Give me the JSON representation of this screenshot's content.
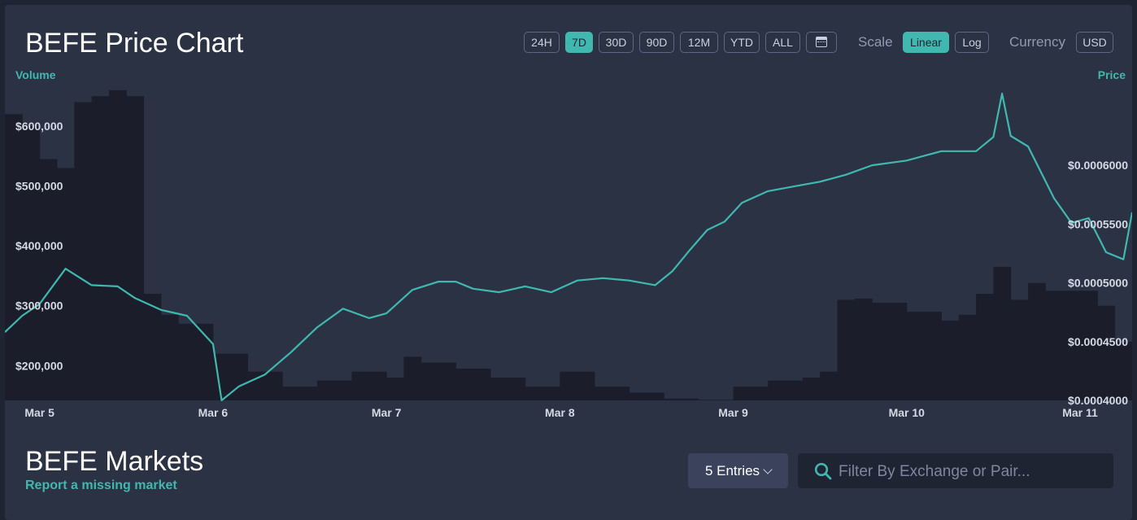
{
  "chart": {
    "title": "BEFE Price Chart",
    "ranges": [
      "24H",
      "7D",
      "30D",
      "90D",
      "12M",
      "YTD",
      "ALL"
    ],
    "active_range": "7D",
    "calendar_icon": "calendar-icon",
    "scale_label": "Scale",
    "scales": [
      "Linear",
      "Log"
    ],
    "active_scale": "Linear",
    "currency_label": "Currency",
    "currency": "USD",
    "colors": {
      "price_line": "#40b8b0",
      "volume_bars": "#1b1e2a",
      "accent": "#40b8b0"
    }
  },
  "chart_data": {
    "type": "line",
    "title": "BEFE Price Chart",
    "left_axis_label": "Volume",
    "right_axis_label": "Price",
    "x_tick_labels": [
      "Mar 5",
      "Mar 6",
      "Mar 7",
      "Mar 8",
      "Mar 9",
      "Mar 10",
      "Mar 11"
    ],
    "x_range_days": [
      -0.2,
      6.3
    ],
    "volume_ticks": [
      {
        "value": 200000,
        "label": "$200,000"
      },
      {
        "value": 300000,
        "label": "$300,000"
      },
      {
        "value": 400000,
        "label": "$400,000"
      },
      {
        "value": 500000,
        "label": "$500,000"
      },
      {
        "value": 600000,
        "label": "$600,000"
      }
    ],
    "volume_range": [
      142000,
      672000
    ],
    "price_ticks": [
      {
        "value": 0.0004,
        "label": "$0.0004000"
      },
      {
        "value": 0.00045,
        "label": "$0.0004500"
      },
      {
        "value": 0.0005,
        "label": "$0.0005000"
      },
      {
        "value": 0.00055,
        "label": "$0.0005500"
      },
      {
        "value": 0.0006,
        "label": "$0.0006000"
      }
    ],
    "price_range": [
      0.0004,
      0.00067
    ],
    "series": [
      {
        "name": "Volume",
        "kind": "bar",
        "x_days": [
          -0.2,
          -0.1,
          0.0,
          0.1,
          0.2,
          0.3,
          0.4,
          0.5,
          0.6,
          0.7,
          0.8,
          1.0,
          1.2,
          1.4,
          1.6,
          1.8,
          2.0,
          2.1,
          2.2,
          2.4,
          2.6,
          2.8,
          3.0,
          3.2,
          3.4,
          3.6,
          3.8,
          4.0,
          4.2,
          4.4,
          4.5,
          4.6,
          4.7,
          4.8,
          5.0,
          5.2,
          5.3,
          5.4,
          5.5,
          5.6,
          5.7,
          5.8,
          6.0,
          6.1,
          6.2,
          6.3
        ],
        "values": [
          620000,
          600000,
          545000,
          530000,
          640000,
          650000,
          660000,
          650000,
          320000,
          285000,
          270000,
          220000,
          190000,
          165000,
          175000,
          190000,
          180000,
          215000,
          205000,
          195000,
          180000,
          165000,
          190000,
          165000,
          155000,
          145000,
          143000,
          165000,
          175000,
          180000,
          190000,
          310000,
          312000,
          305000,
          290000,
          275000,
          285000,
          320000,
          365000,
          310000,
          338000,
          325000,
          325000,
          300000,
          240000,
          300000
        ]
      },
      {
        "name": "Price",
        "kind": "line",
        "x_days": [
          -0.2,
          -0.1,
          0.0,
          0.15,
          0.3,
          0.45,
          0.55,
          0.7,
          0.85,
          1.0,
          1.05,
          1.15,
          1.3,
          1.45,
          1.6,
          1.75,
          1.9,
          2.0,
          2.15,
          2.3,
          2.4,
          2.5,
          2.65,
          2.8,
          2.95,
          3.1,
          3.25,
          3.4,
          3.55,
          3.65,
          3.75,
          3.85,
          3.95,
          4.05,
          4.2,
          4.35,
          4.5,
          4.65,
          4.8,
          5.0,
          5.2,
          5.4,
          5.5,
          5.55,
          5.6,
          5.7,
          5.85,
          5.95,
          6.05,
          6.15,
          6.25,
          6.3
        ],
        "values": [
          0.000458,
          0.000472,
          0.000482,
          0.000512,
          0.000498,
          0.000497,
          0.000487,
          0.000477,
          0.000472,
          0.000448,
          0.0004,
          0.000412,
          0.000422,
          0.000441,
          0.000462,
          0.000478,
          0.00047,
          0.000474,
          0.000494,
          0.000501,
          0.000501,
          0.000495,
          0.000492,
          0.000497,
          0.000492,
          0.000502,
          0.000504,
          0.000502,
          0.000498,
          0.00051,
          0.000528,
          0.000545,
          0.000552,
          0.000568,
          0.000578,
          0.000582,
          0.000586,
          0.000592,
          0.0006,
          0.000604,
          0.000612,
          0.000612,
          0.000624,
          0.000661,
          0.000625,
          0.000616,
          0.000572,
          0.000551,
          0.000555,
          0.000526,
          0.00052,
          0.00056
        ]
      }
    ],
    "grid": false,
    "legend": "none"
  },
  "markets": {
    "title": "BEFE Markets",
    "report_link": "Report a missing market",
    "entries_label": "5 Entries",
    "search_placeholder": "Filter By Exchange or Pair...",
    "search_value": "",
    "search_icon": "search-icon",
    "dropdown_icon": "chevron-down-icon"
  }
}
